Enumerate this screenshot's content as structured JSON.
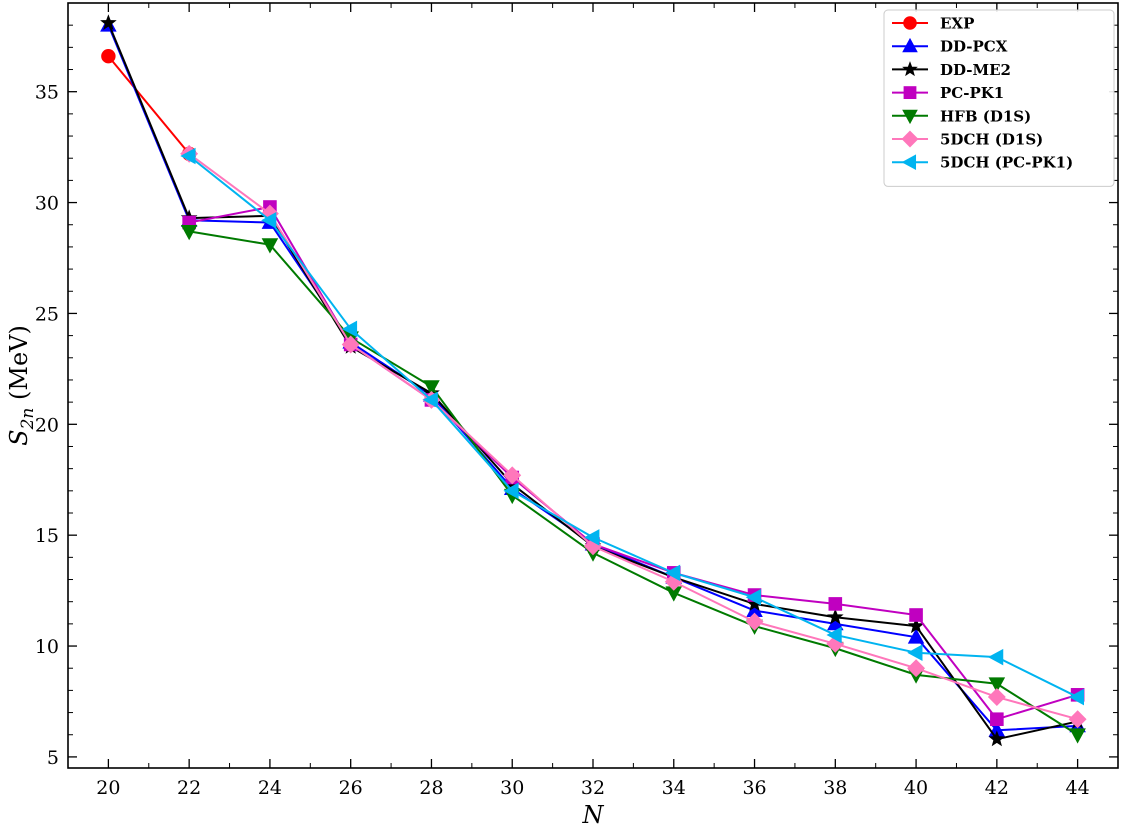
{
  "chart_data": {
    "type": "line",
    "xlabel": "N",
    "ylabel": "S_2n (MeV)",
    "ylabel_main": "S",
    "ylabel_sub": "2n",
    "ylabel_unit": " (MeV)",
    "xlim": [
      19,
      45
    ],
    "ylim": [
      4.5,
      39
    ],
    "xticks": [
      20,
      22,
      24,
      26,
      28,
      30,
      32,
      34,
      36,
      38,
      40,
      42,
      44
    ],
    "yticks": [
      5,
      10,
      15,
      20,
      25,
      30,
      35
    ],
    "xticks_minor": [
      19,
      21,
      23,
      25,
      27,
      29,
      31,
      33,
      35,
      37,
      39,
      41,
      43,
      45
    ],
    "yticks_minor": [
      6,
      7,
      8,
      9,
      11,
      12,
      13,
      14,
      16,
      17,
      18,
      19,
      21,
      22,
      23,
      24,
      26,
      27,
      28,
      29,
      31,
      32,
      33,
      34,
      36,
      37,
      38
    ],
    "legend_position": "top-right",
    "grid": false,
    "series": [
      {
        "name": "EXP",
        "color": "#ff0000",
        "marker": "circle",
        "x": [
          20,
          22
        ],
        "y": [
          36.6,
          32.2
        ]
      },
      {
        "name": "DD-PCX",
        "color": "#0000ff",
        "marker": "triangle-up",
        "x": [
          20,
          22,
          24,
          26,
          28,
          30,
          32,
          34,
          36,
          38,
          40,
          42,
          44
        ],
        "y": [
          38.0,
          29.2,
          29.1,
          23.7,
          21.3,
          17.1,
          14.6,
          13.1,
          11.6,
          11.0,
          10.4,
          6.2,
          6.4
        ]
      },
      {
        "name": "DD-ME2",
        "color": "#000000",
        "marker": "star",
        "x": [
          20,
          22,
          24,
          26,
          28,
          30,
          32,
          34,
          36,
          38,
          40,
          42,
          44
        ],
        "y": [
          38.1,
          29.3,
          29.4,
          23.5,
          21.4,
          17.3,
          14.5,
          13.1,
          11.9,
          11.3,
          10.9,
          5.8,
          6.6
        ]
      },
      {
        "name": "PC-PK1",
        "color": "#c000c0",
        "marker": "square",
        "x": [
          20,
          22,
          24,
          26,
          28,
          30,
          32,
          34,
          36,
          38,
          40,
          42,
          44
        ],
        "y": [
          null,
          29.1,
          29.8,
          23.6,
          21.1,
          17.6,
          14.6,
          13.3,
          12.3,
          11.9,
          11.4,
          6.7,
          7.8
        ]
      },
      {
        "name": "HFB (D1S)",
        "color": "#007a00",
        "marker": "triangle-down",
        "x": [
          20,
          22,
          24,
          26,
          28,
          30,
          32,
          34,
          36,
          38,
          40,
          42,
          44
        ],
        "y": [
          null,
          28.7,
          28.1,
          23.9,
          21.7,
          16.8,
          14.2,
          12.4,
          10.9,
          9.9,
          8.7,
          8.3,
          6.0
        ]
      },
      {
        "name": "5DCH (D1S)",
        "color": "#ff77bb",
        "marker": "diamond",
        "x": [
          20,
          22,
          24,
          26,
          28,
          30,
          32,
          34,
          36,
          38,
          40,
          42,
          44
        ],
        "y": [
          null,
          32.2,
          29.5,
          23.6,
          21.1,
          17.7,
          14.5,
          12.9,
          11.1,
          10.1,
          9.0,
          7.7,
          6.7
        ]
      },
      {
        "name": "5DCH (PC-PK1)",
        "color": "#00b4f0",
        "marker": "triangle-left",
        "x": [
          20,
          22,
          24,
          26,
          28,
          30,
          32,
          34,
          36,
          38,
          40,
          42,
          44
        ],
        "y": [
          null,
          32.1,
          29.2,
          24.3,
          21.1,
          17.0,
          14.9,
          13.3,
          12.2,
          10.5,
          9.7,
          9.5,
          7.7
        ]
      }
    ]
  }
}
